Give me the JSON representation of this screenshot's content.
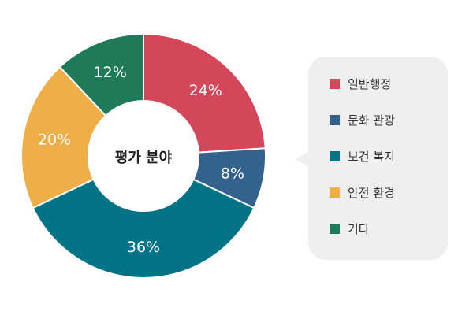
{
  "chart_data": {
    "type": "pie",
    "center_label": "평가 분야",
    "legend_position": "right",
    "series": [
      {
        "name": "일반행정",
        "value": 24,
        "label": "24%",
        "color": "#d4475b"
      },
      {
        "name": "문화 관광",
        "value": 8,
        "label": "8%",
        "color": "#33628f"
      },
      {
        "name": "보건 복지",
        "value": 36,
        "label": "36%",
        "color": "#007486"
      },
      {
        "name": "안전 환경",
        "value": 20,
        "label": "20%",
        "color": "#eeaf48"
      },
      {
        "name": "기타",
        "value": 12,
        "label": "12%",
        "color": "#1f7a59"
      }
    ]
  }
}
